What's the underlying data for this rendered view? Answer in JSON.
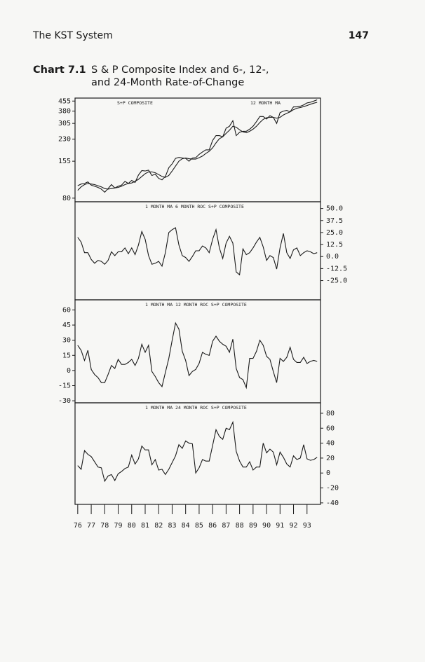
{
  "header": {
    "title": "The KST System",
    "page": "147"
  },
  "caption": {
    "label": "Chart 7.1",
    "lines": [
      "S & P Composite Index and 6-, 12-,",
      "and 24-Month Rate-of-Change"
    ]
  },
  "chart_data": [
    {
      "type": "line",
      "log_scale": true,
      "y_axis_side": "left",
      "x": [
        76,
        76.25,
        76.5,
        76.75,
        77,
        77.25,
        77.5,
        77.75,
        78,
        78.25,
        78.5,
        78.75,
        79,
        79.25,
        79.5,
        79.75,
        80,
        80.25,
        80.5,
        80.75,
        81,
        81.25,
        81.5,
        81.75,
        82,
        82.25,
        82.5,
        82.75,
        83,
        83.25,
        83.5,
        83.75,
        84,
        84.25,
        84.5,
        84.75,
        85,
        85.25,
        85.5,
        85.75,
        86,
        86.25,
        86.5,
        86.75,
        87,
        87.25,
        87.5,
        87.75,
        88,
        88.25,
        88.5,
        88.75,
        89,
        89.25,
        89.5,
        89.75,
        90,
        90.25,
        90.5,
        90.75,
        91,
        91.25,
        91.5,
        91.75,
        92,
        92.25,
        92.5,
        92.75,
        93,
        93.25,
        93.5,
        93.75
      ],
      "xlim": [
        75.8,
        94
      ],
      "ylim": [
        75,
        480
      ],
      "yticks": [
        455,
        380,
        305,
        230,
        155,
        80
      ],
      "series": [
        {
          "name": "S+P COMPOSITE",
          "color": "#1a1a1a",
          "values": [
            100,
            103,
            104,
            107,
            101,
            99,
            97,
            94,
            89,
            95,
            102,
            96,
            99,
            101,
            108,
            104,
            110,
            106,
            121,
            131,
            130,
            132,
            120,
            123,
            114,
            111,
            118,
            138,
            148,
            163,
            166,
            164,
            163,
            155,
            164,
            165,
            175,
            183,
            190,
            190,
            225,
            245,
            245,
            240,
            280,
            290,
            320,
            245,
            260,
            265,
            265,
            275,
            290,
            315,
            345,
            345,
            330,
            350,
            340,
            305,
            370,
            380,
            385,
            375,
            410,
            410,
            415,
            425,
            440,
            445,
            455,
            465
          ]
        },
        {
          "name": "12 MONTH MA",
          "color": "#1a1a1a",
          "values": [
            92,
            98,
            102,
            104,
            103,
            102,
            100,
            98,
            95,
            94,
            95,
            96,
            97,
            99,
            102,
            104,
            105,
            108,
            112,
            118,
            124,
            128,
            128,
            126,
            122,
            118,
            116,
            120,
            130,
            142,
            155,
            162,
            164,
            162,
            161,
            161,
            165,
            170,
            178,
            185,
            197,
            215,
            232,
            240,
            255,
            270,
            290,
            285,
            272,
            262,
            258,
            265,
            275,
            290,
            310,
            328,
            338,
            340,
            340,
            335,
            340,
            355,
            365,
            375,
            390,
            400,
            405,
            412,
            420,
            430,
            438,
            445
          ]
        }
      ]
    },
    {
      "type": "line",
      "y_axis_side": "right",
      "x": [
        76,
        76.25,
        76.5,
        76.75,
        77,
        77.25,
        77.5,
        77.75,
        78,
        78.25,
        78.5,
        78.75,
        79,
        79.25,
        79.5,
        79.75,
        80,
        80.25,
        80.5,
        80.75,
        81,
        81.25,
        81.5,
        81.75,
        82,
        82.25,
        82.5,
        82.75,
        83,
        83.25,
        83.5,
        83.75,
        84,
        84.25,
        84.5,
        84.75,
        85,
        85.25,
        85.5,
        85.75,
        86,
        86.25,
        86.5,
        86.75,
        87,
        87.25,
        87.5,
        87.75,
        88,
        88.25,
        88.5,
        88.75,
        89,
        89.25,
        89.5,
        89.75,
        90,
        90.25,
        90.5,
        90.75,
        91,
        91.25,
        91.5,
        91.75,
        92,
        92.25,
        92.5,
        92.75,
        93,
        93.25,
        93.5,
        93.75
      ],
      "xlim": [
        75.8,
        94
      ],
      "ylim": [
        -45,
        57
      ],
      "yticks": [
        {
          "value": 50,
          "label": "50.0"
        },
        37.5,
        {
          "value": 25,
          "label": "25.0"
        },
        12.5,
        {
          "value": 0,
          "label": "0.0"
        },
        -12.5,
        {
          "value": -25,
          "label": "-25.0"
        }
      ],
      "series": [
        {
          "name": "1 MONTH MA 6 MONTH ROC S+P COMPOSITE",
          "color": "#1a1a1a",
          "values": [
            20,
            15,
            4,
            4,
            -3,
            -7,
            -4,
            -5,
            -8,
            -4,
            5,
            1,
            5,
            5,
            9,
            3,
            9,
            2,
            12,
            26,
            18,
            1,
            -8,
            -7,
            -5,
            -10,
            4,
            25,
            28,
            30,
            12,
            1,
            -1,
            -5,
            0,
            6,
            6,
            11,
            9,
            4,
            18,
            28,
            9,
            -2,
            14,
            21,
            14,
            -16,
            -19,
            8,
            2,
            4,
            9,
            15,
            20,
            10,
            -4,
            1,
            -1,
            -13,
            9,
            24,
            4,
            -2,
            7,
            9,
            1,
            4,
            6,
            5,
            3,
            4
          ]
        }
      ]
    },
    {
      "type": "line",
      "y_axis_side": "left",
      "x": [
        76,
        76.25,
        76.5,
        76.75,
        77,
        77.25,
        77.5,
        77.75,
        78,
        78.25,
        78.5,
        78.75,
        79,
        79.25,
        79.5,
        79.75,
        80,
        80.25,
        80.5,
        80.75,
        81,
        81.25,
        81.5,
        81.75,
        82,
        82.25,
        82.5,
        82.75,
        83,
        83.25,
        83.5,
        83.75,
        84,
        84.25,
        84.5,
        84.75,
        85,
        85.25,
        85.5,
        85.75,
        86,
        86.25,
        86.5,
        86.75,
        87,
        87.25,
        87.5,
        87.75,
        88,
        88.25,
        88.5,
        88.75,
        89,
        89.25,
        89.5,
        89.75,
        90,
        90.25,
        90.5,
        90.75,
        91,
        91.25,
        91.5,
        91.75,
        92,
        92.25,
        92.5,
        92.75,
        93,
        93.25,
        93.5,
        93.75
      ],
      "xlim": [
        75.8,
        94
      ],
      "ylim": [
        -32,
        70
      ],
      "yticks": [
        60,
        45,
        30,
        15,
        0,
        -15,
        -30
      ],
      "series": [
        {
          "name": "1 MONTH MA 12 MONTH ROC S+P COMPOSITE",
          "color": "#1a1a1a",
          "values": [
            25,
            20,
            10,
            20,
            1,
            -4,
            -7,
            -12,
            -12,
            -4,
            5,
            2,
            11,
            6,
            6,
            8,
            11,
            5,
            12,
            26,
            18,
            25,
            -1,
            -6,
            -12,
            -16,
            -2,
            12,
            30,
            47,
            41,
            19,
            10,
            -5,
            -1,
            1,
            7,
            18,
            16,
            15,
            29,
            34,
            29,
            26,
            24,
            18,
            31,
            2,
            -7,
            -9,
            -17,
            12,
            12,
            19,
            30,
            25,
            14,
            11,
            -1,
            -12,
            12,
            9,
            13,
            23,
            11,
            8,
            8,
            13,
            7,
            9,
            10,
            9
          ]
        }
      ]
    },
    {
      "type": "line",
      "y_axis_side": "right",
      "x": [
        76,
        76.25,
        76.5,
        76.75,
        77,
        77.25,
        77.5,
        77.75,
        78,
        78.25,
        78.5,
        78.75,
        79,
        79.25,
        79.5,
        79.75,
        80,
        80.25,
        80.5,
        80.75,
        81,
        81.25,
        81.5,
        81.75,
        82,
        82.25,
        82.5,
        82.75,
        83,
        83.25,
        83.5,
        83.75,
        84,
        84.25,
        84.5,
        84.75,
        85,
        85.25,
        85.5,
        85.75,
        86,
        86.25,
        86.5,
        86.75,
        87,
        87.25,
        87.5,
        87.75,
        88,
        88.25,
        88.5,
        88.75,
        89,
        89.25,
        89.5,
        89.75,
        90,
        90.25,
        90.5,
        90.75,
        91,
        91.25,
        91.5,
        91.75,
        92,
        92.25,
        92.5,
        92.75,
        93,
        93.25,
        93.5,
        93.75
      ],
      "xlim": [
        75.8,
        94
      ],
      "xticks": [
        76,
        77,
        78,
        79,
        80,
        81,
        82,
        83,
        84,
        85,
        86,
        87,
        88,
        89,
        90,
        91,
        92,
        93
      ],
      "ylim": [
        -42,
        94
      ],
      "yticks": [
        80,
        60,
        40,
        20,
        0,
        -20,
        -40
      ],
      "series": [
        {
          "name": "1 MONTH MA 24 MONTH ROC S+P COMPOSITE",
          "color": "#1a1a1a",
          "values": [
            10,
            5,
            30,
            25,
            22,
            15,
            8,
            7,
            -11,
            -4,
            -2,
            -10,
            -1,
            2,
            6,
            8,
            24,
            12,
            19,
            36,
            31,
            31,
            11,
            18,
            4,
            5,
            -2,
            5,
            14,
            23,
            38,
            33,
            43,
            40,
            39,
            0,
            7,
            18,
            16,
            16,
            37,
            58,
            49,
            45,
            60,
            58,
            68,
            29,
            16,
            8,
            8,
            15,
            4,
            8,
            8,
            40,
            27,
            32,
            28,
            11,
            28,
            21,
            12,
            8,
            23,
            18,
            20,
            38,
            19,
            17,
            18,
            21
          ]
        }
      ]
    }
  ]
}
